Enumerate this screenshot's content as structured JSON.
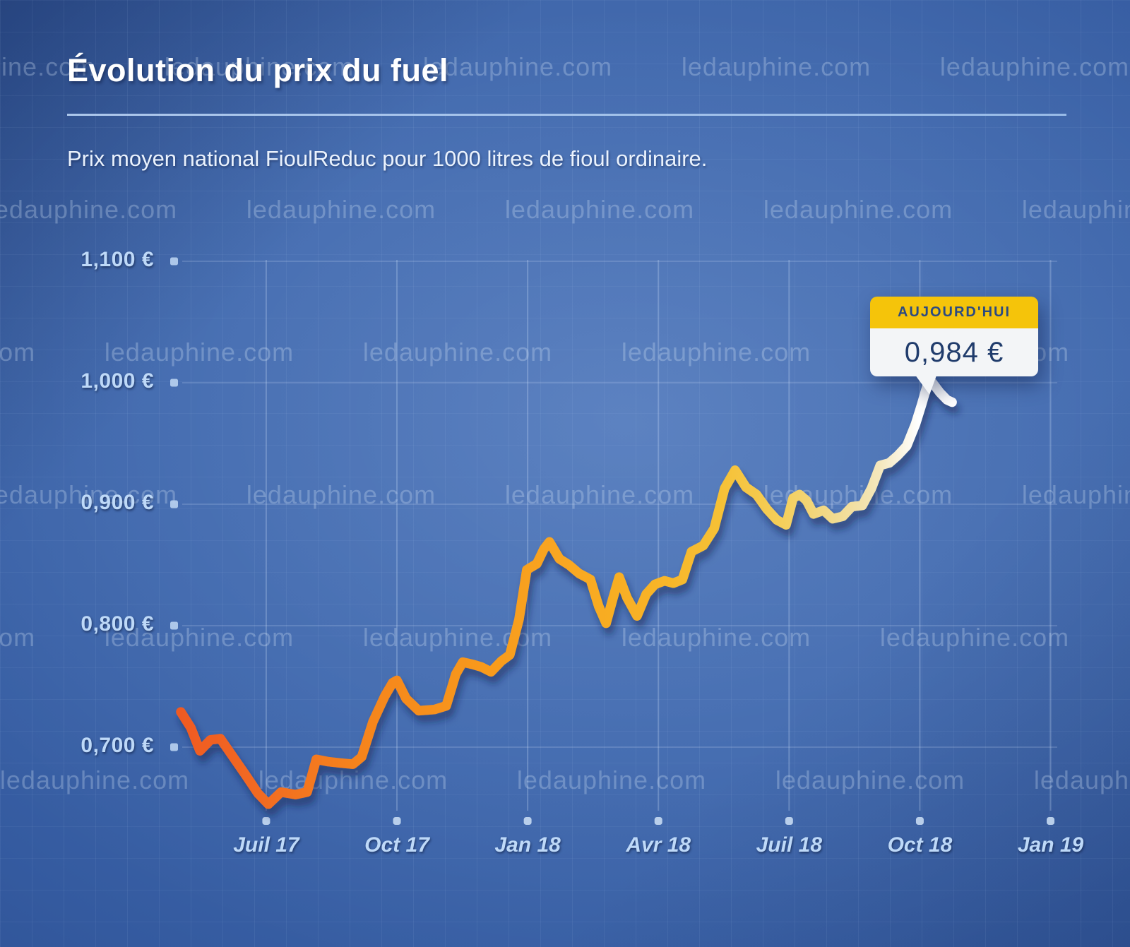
{
  "page": {
    "title": "Évolution du prix du fuel",
    "subtitle": "Prix moyen national FioulReduc pour 1000 litres de fioul ordinaire."
  },
  "watermark": {
    "text": "ledauphine.com"
  },
  "tooltip": {
    "label": "AUJOURD'HUI",
    "value": "0,984 €"
  },
  "colors": {
    "background_center": "#4a74ba",
    "background_edge": "#243f7d",
    "axis_label": "#bed9f8",
    "grid_line": "#dceaff",
    "divider": "#aecdf1",
    "tick_square": "#b9d2ef",
    "tick_dot": "#c6daf2",
    "tooltip_header_bg": "#f5c40a",
    "tooltip_body_bg": "#f3f5f7",
    "tooltip_text": "#203c6c",
    "line_shadow": "#0c1f4e",
    "line_stops": [
      {
        "offset": 0.0,
        "color": "#ef5a23"
      },
      {
        "offset": 0.1,
        "color": "#f26a20"
      },
      {
        "offset": 0.22,
        "color": "#f5821f"
      },
      {
        "offset": 0.35,
        "color": "#f7941e"
      },
      {
        "offset": 0.48,
        "color": "#f9a520"
      },
      {
        "offset": 0.6,
        "color": "#f8b226"
      },
      {
        "offset": 0.7,
        "color": "#f6c136"
      },
      {
        "offset": 0.78,
        "color": "#f4cf5c"
      },
      {
        "offset": 0.85,
        "color": "#f1db92"
      },
      {
        "offset": 0.905,
        "color": "#f4e7bd"
      },
      {
        "offset": 0.955,
        "color": "#ffffff"
      },
      {
        "offset": 1.0,
        "color": "#ffffff"
      }
    ]
  },
  "chart_data": {
    "type": "line",
    "title": "Évolution du prix du fuel",
    "series_name": "Prix moyen national FioulReduc pour 1000 litres de fioul ordinaire (€ par litre)",
    "x_axis": {
      "t_unit": "mois depuis mai 2017",
      "tick_labels": [
        "Juil 17",
        "Oct 17",
        "Jan 18",
        "Avr 18",
        "Juil 18",
        "Oct 18",
        "Jan 19"
      ],
      "tick_t": [
        1.96,
        4.96,
        7.96,
        10.96,
        13.96,
        16.96,
        19.96
      ]
    },
    "y_axis": {
      "tick_labels": [
        "1,100 €",
        "1,000 €",
        "0,900 €",
        "0,800 €",
        "0,700 €"
      ],
      "tick_values": [
        1.1,
        1.0,
        0.9,
        0.8,
        0.7
      ],
      "range": [
        0.64,
        1.13
      ],
      "grid": true
    },
    "today": {
      "label": "AUJOURD'HUI",
      "value": 0.984,
      "value_text": "0,984 €"
    },
    "points": [
      [
        0.0,
        0.729
      ],
      [
        0.23,
        0.716
      ],
      [
        0.44,
        0.697
      ],
      [
        0.68,
        0.706
      ],
      [
        0.91,
        0.707
      ],
      [
        1.2,
        0.692
      ],
      [
        1.49,
        0.677
      ],
      [
        1.77,
        0.662
      ],
      [
        2.01,
        0.653
      ],
      [
        2.3,
        0.663
      ],
      [
        2.63,
        0.661
      ],
      [
        2.9,
        0.663
      ],
      [
        3.11,
        0.69
      ],
      [
        3.39,
        0.688
      ],
      [
        3.66,
        0.687
      ],
      [
        3.95,
        0.686
      ],
      [
        4.15,
        0.692
      ],
      [
        4.41,
        0.721
      ],
      [
        4.68,
        0.742
      ],
      [
        4.86,
        0.753
      ],
      [
        4.96,
        0.755
      ],
      [
        5.17,
        0.74
      ],
      [
        5.46,
        0.73
      ],
      [
        5.82,
        0.731
      ],
      [
        6.09,
        0.734
      ],
      [
        6.31,
        0.76
      ],
      [
        6.47,
        0.77
      ],
      [
        6.71,
        0.768
      ],
      [
        6.9,
        0.766
      ],
      [
        7.12,
        0.762
      ],
      [
        7.36,
        0.771
      ],
      [
        7.55,
        0.776
      ],
      [
        7.76,
        0.805
      ],
      [
        7.94,
        0.846
      ],
      [
        8.17,
        0.851
      ],
      [
        8.33,
        0.863
      ],
      [
        8.46,
        0.869
      ],
      [
        8.69,
        0.855
      ],
      [
        8.91,
        0.85
      ],
      [
        9.14,
        0.843
      ],
      [
        9.4,
        0.838
      ],
      [
        9.59,
        0.816
      ],
      [
        9.76,
        0.802
      ],
      [
        9.92,
        0.823
      ],
      [
        10.06,
        0.84
      ],
      [
        10.24,
        0.823
      ],
      [
        10.47,
        0.808
      ],
      [
        10.68,
        0.826
      ],
      [
        10.88,
        0.834
      ],
      [
        11.1,
        0.837
      ],
      [
        11.3,
        0.835
      ],
      [
        11.51,
        0.838
      ],
      [
        11.72,
        0.861
      ],
      [
        11.99,
        0.866
      ],
      [
        12.24,
        0.88
      ],
      [
        12.48,
        0.913
      ],
      [
        12.72,
        0.928
      ],
      [
        12.97,
        0.914
      ],
      [
        13.21,
        0.908
      ],
      [
        13.45,
        0.896
      ],
      [
        13.68,
        0.887
      ],
      [
        13.89,
        0.883
      ],
      [
        14.05,
        0.905
      ],
      [
        14.2,
        0.908
      ],
      [
        14.36,
        0.903
      ],
      [
        14.52,
        0.892
      ],
      [
        14.75,
        0.895
      ],
      [
        14.96,
        0.888
      ],
      [
        15.19,
        0.89
      ],
      [
        15.4,
        0.898
      ],
      [
        15.64,
        0.899
      ],
      [
        15.85,
        0.913
      ],
      [
        16.05,
        0.932
      ],
      [
        16.26,
        0.934
      ],
      [
        16.45,
        0.94
      ],
      [
        16.66,
        0.948
      ],
      [
        16.86,
        0.966
      ],
      [
        17.0,
        0.982
      ],
      [
        17.13,
        0.998
      ],
      [
        17.23,
        1.001
      ],
      [
        17.42,
        0.992
      ],
      [
        17.58,
        0.986
      ],
      [
        17.7,
        0.984
      ]
    ]
  }
}
